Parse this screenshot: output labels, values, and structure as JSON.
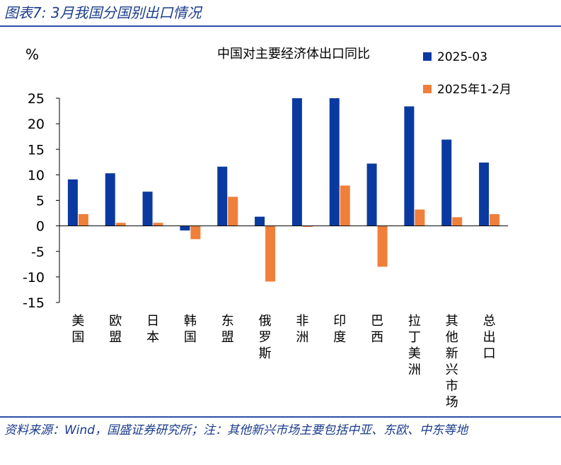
{
  "figure_title": "图表7:  3月我国分国别出口情况",
  "source_note": "资料来源：Wind，国盛证券研究所；注：其他新兴市场主要包括中亚、东欧、中东等地",
  "colors": {
    "series_1": "#0a3aa0",
    "series_2": "#f07f3a",
    "axis": "#000000",
    "title_blue": "#1a3c8c"
  },
  "chart_data": {
    "type": "bar",
    "title": "中国对主要经济体出口同比",
    "ylabel": "%",
    "xlabel": "",
    "ylim": [
      -15,
      25
    ],
    "yticks": [
      25,
      20,
      15,
      10,
      5,
      0,
      -5,
      -10,
      -15
    ],
    "grid": false,
    "legend_position": "top-right",
    "categories": [
      "美国",
      "欧盟",
      "日本",
      "韩国",
      "东盟",
      "俄罗斯",
      "非洲",
      "印度",
      "巴西",
      "拉丁美洲",
      "其他新兴市场",
      "总出口"
    ],
    "series": [
      {
        "name": "2025-03",
        "values": [
          9.1,
          10.3,
          6.7,
          -0.9,
          11.6,
          1.8,
          25.0,
          25.0,
          12.2,
          23.4,
          16.9,
          12.4
        ]
      },
      {
        "name": "2025年1-2月",
        "values": [
          2.3,
          0.6,
          0.6,
          -2.6,
          5.7,
          -10.9,
          -0.2,
          7.9,
          -8.0,
          3.2,
          1.7,
          2.3
        ]
      }
    ]
  }
}
